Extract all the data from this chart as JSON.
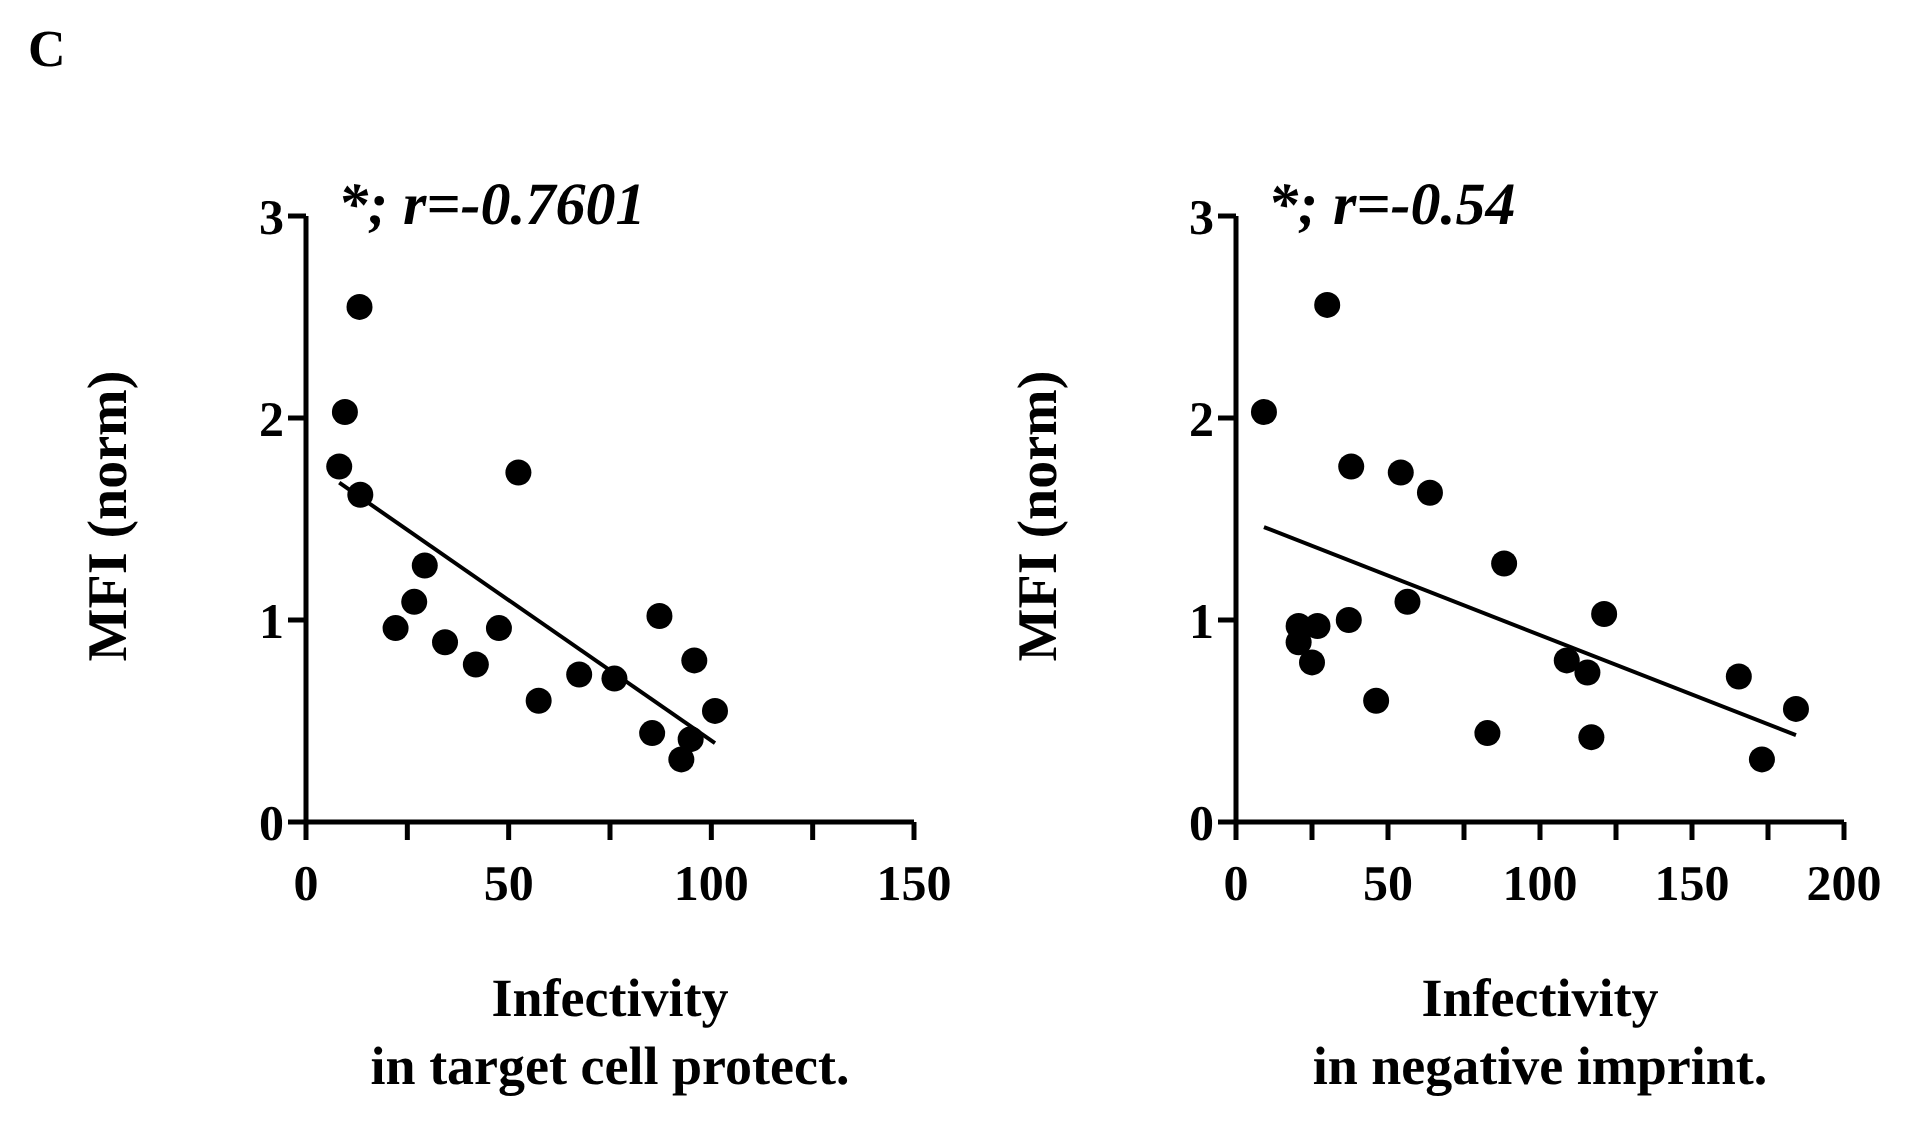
{
  "chart_data": [
    {
      "type": "scatter",
      "title": "C",
      "xlabel": "Infectivity\nin target cell protect.",
      "ylabel": "MFI (norm)",
      "annotations": [
        "*; r=-0.7601"
      ],
      "marker": "circle",
      "grid": false,
      "xlim": [
        0,
        150
      ],
      "xticks": [
        0,
        {
          "value": 25,
          "label": null
        },
        50,
        {
          "value": 75,
          "label": null
        },
        100,
        {
          "value": 125,
          "label": null
        },
        150
      ],
      "ylim": [
        0,
        3
      ],
      "yticks": [
        0,
        1,
        2,
        3
      ],
      "series": [
        {
          "color": "#000000",
          "x": [
            8.2,
            9.6,
            13.2,
            13.4,
            22.1,
            26.7,
            29.3,
            34.3,
            41.9,
            47.6,
            52.4,
            57.4,
            67.4,
            76.1,
            85.4,
            87.2,
            92.6,
            94.9,
            95.8,
            100.9
          ],
          "values": [
            1.76,
            2.03,
            2.55,
            1.62,
            0.96,
            1.09,
            1.27,
            0.89,
            0.78,
            0.96,
            1.73,
            0.6,
            0.73,
            0.71,
            0.44,
            1.02,
            0.31,
            0.41,
            0.8,
            0.55
          ]
        },
        {
          "type": "line",
          "marker": "none",
          "color": "#000000",
          "x": [
            8.2,
            100.9
          ],
          "values": [
            1.68,
            0.39
          ]
        }
      ]
    },
    {
      "type": "scatter",
      "xlabel": "Infectivity\nin negative imprint.",
      "ylabel": "MFI (norm)",
      "annotations": [
        "*; r=-0.54"
      ],
      "marker": "circle",
      "grid": false,
      "xlim": [
        0,
        200
      ],
      "xticks": [
        0,
        {
          "value": 25,
          "label": null
        },
        50,
        {
          "value": 75,
          "label": null
        },
        100,
        {
          "value": 125,
          "label": null
        },
        150,
        {
          "value": 175,
          "label": null
        },
        200
      ],
      "ylim": [
        0,
        3
      ],
      "yticks": [
        0,
        1,
        2,
        3
      ],
      "series": [
        {
          "color": "#000000",
          "x": [
            9.2,
            20.6,
            20.6,
            25,
            26.8,
            30,
            37.1,
            37.9,
            46.1,
            54.2,
            56.4,
            63.8,
            82.7,
            88.2,
            108.8,
            115.6,
            116.9,
            121.1,
            165.4,
            173,
            184.2
          ],
          "values": [
            2.03,
            0.97,
            0.89,
            0.79,
            0.97,
            2.56,
            1,
            1.76,
            0.6,
            1.73,
            1.09,
            1.63,
            0.44,
            1.28,
            0.8,
            0.74,
            0.42,
            1.03,
            0.72,
            0.31,
            0.56
          ]
        },
        {
          "type": "line",
          "marker": "none",
          "color": "#000000",
          "x": [
            9.2,
            184.2
          ],
          "values": [
            1.46,
            0.43
          ]
        }
      ]
    }
  ]
}
